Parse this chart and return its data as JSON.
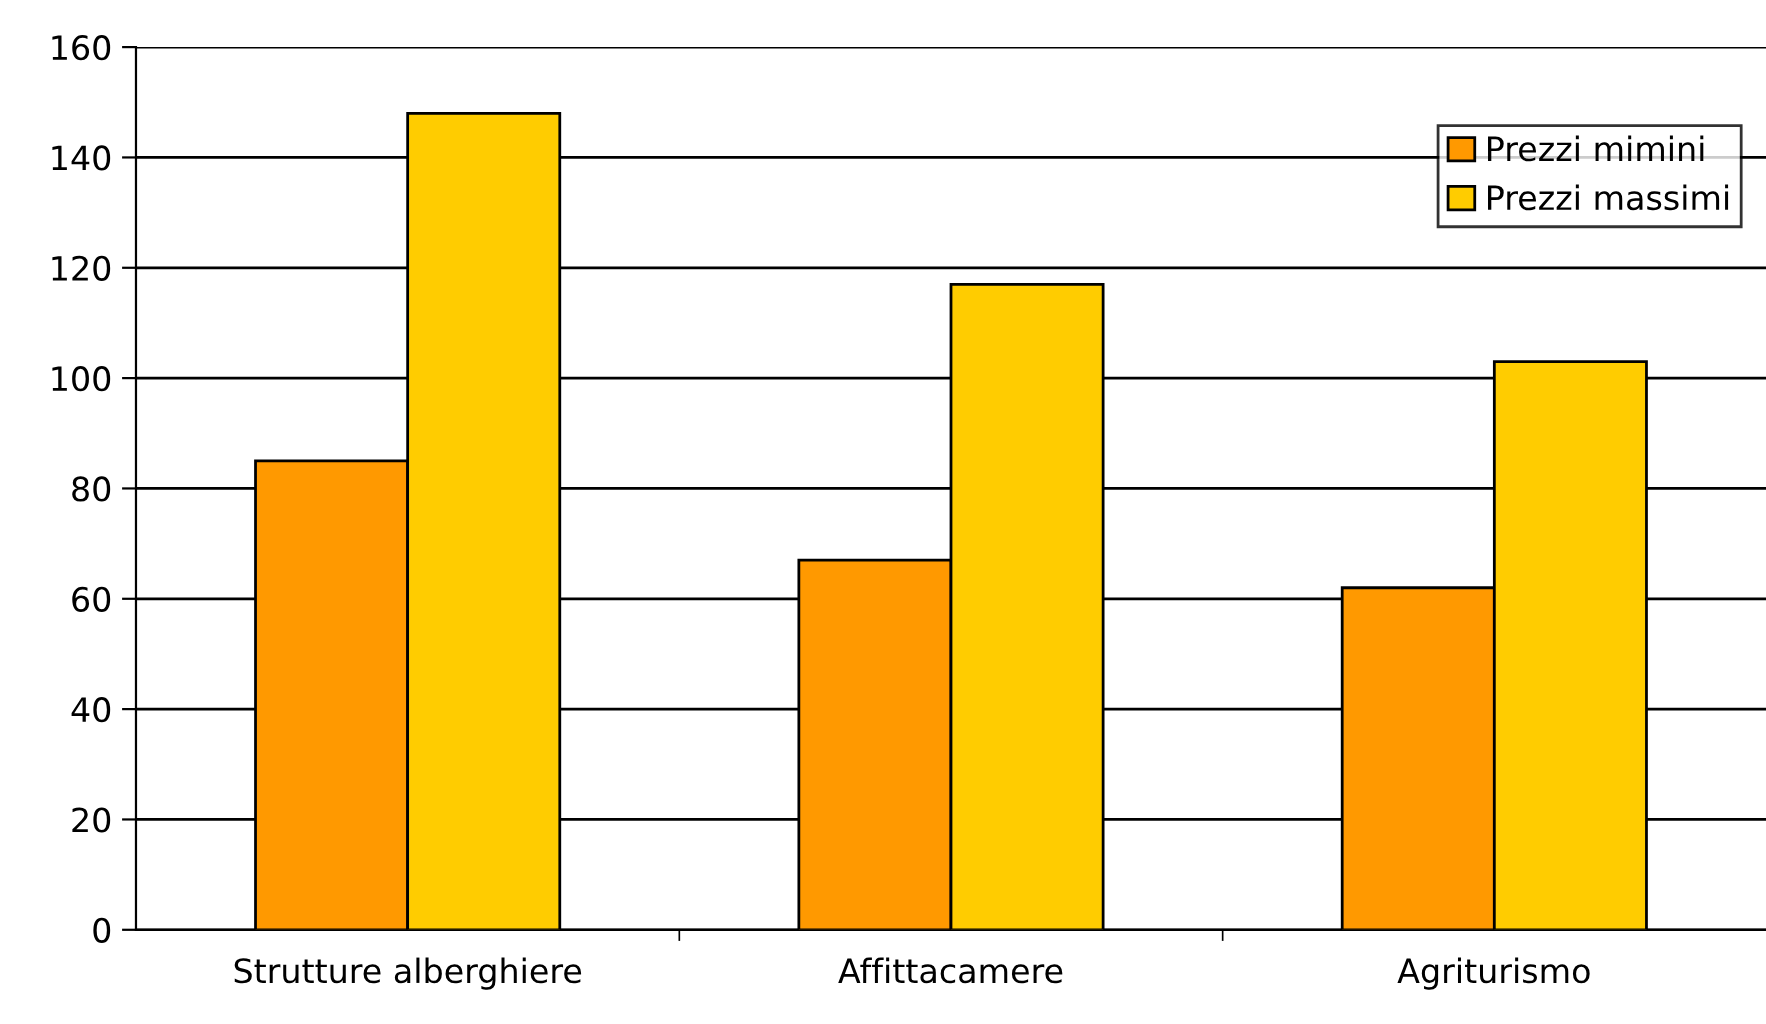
{
  "chart_data": {
    "type": "bar",
    "categories": [
      "Strutture alberghiere",
      "Affittacamere",
      "Agriturismo"
    ],
    "series": [
      {
        "name": "Prezzi mimini",
        "color": "#ff9900",
        "values": [
          85,
          67,
          62
        ]
      },
      {
        "name": "Prezzi massimi",
        "color": "#ffcc00",
        "values": [
          148,
          117,
          103
        ]
      }
    ],
    "ylim": [
      0,
      160
    ],
    "yticks": [
      0,
      20,
      40,
      60,
      80,
      100,
      120,
      140,
      160
    ],
    "grid": "y",
    "legend": "top right"
  }
}
